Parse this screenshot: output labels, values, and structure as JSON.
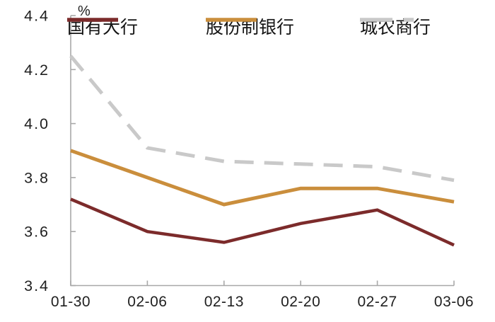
{
  "chart_data": {
    "type": "line",
    "title": "",
    "ylabel": "%",
    "xlabel": "",
    "ylim": [
      3.4,
      4.4
    ],
    "ytick_step": 0.2,
    "yticks": [
      "4.4",
      "4.2",
      "4.0",
      "3.8",
      "3.6",
      "3.4"
    ],
    "categories": [
      "01-30",
      "02-06",
      "02-13",
      "02-20",
      "02-27",
      "03-06"
    ],
    "series": [
      {
        "name": "国有大行",
        "color": "#7C2B2B",
        "style": "solid",
        "values": [
          3.72,
          3.6,
          3.56,
          3.63,
          3.68,
          3.55
        ]
      },
      {
        "name": "股份制银行",
        "color": "#CA8E3C",
        "style": "solid",
        "values": [
          3.9,
          3.8,
          3.7,
          3.76,
          3.76,
          3.71
        ]
      },
      {
        "name": "城农商行",
        "color": "#C9C9C9",
        "style": "dashed",
        "values": [
          4.25,
          3.91,
          3.86,
          3.85,
          3.84,
          3.79
        ]
      }
    ],
    "legend_position": "top",
    "grid": false,
    "axis_color": "#A8A8A8",
    "text_color": "#1F1F1F",
    "background_color": "#FFFFFF"
  }
}
